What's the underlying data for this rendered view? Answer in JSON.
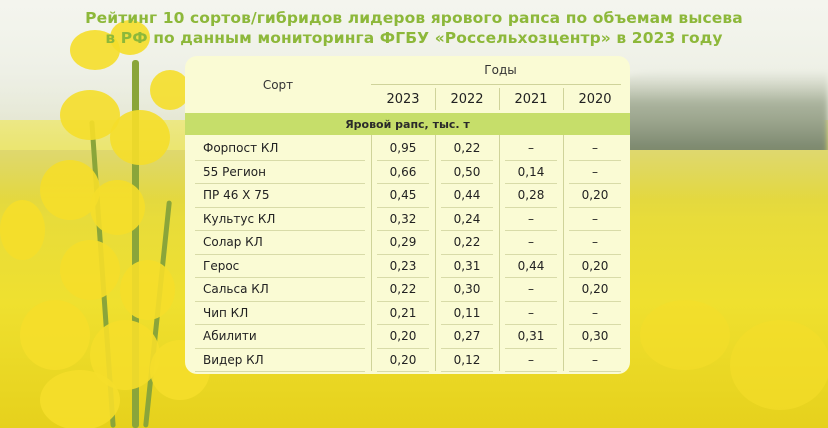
{
  "title": {
    "line1": "Рейтинг 10 сортов/гибридов лидеров ярового рапса по объемам высева",
    "line2": "в РФ по данным мониторинга ФГБУ «Россельхозцентр» в 2023 году"
  },
  "table": {
    "col_sort": "Сорт",
    "col_years": "Годы",
    "years": [
      "2023",
      "2022",
      "2021",
      "2020"
    ],
    "section": "Яровой рапс, тыс. т",
    "rows": [
      {
        "name": "Форпост КЛ",
        "v": [
          "0,95",
          "0,22",
          "–",
          "–"
        ]
      },
      {
        "name": "55 Регион",
        "v": [
          "0,66",
          "0,50",
          "0,14",
          "–"
        ]
      },
      {
        "name": "ПР 46 Х 75",
        "v": [
          "0,45",
          "0,44",
          "0,28",
          "0,20"
        ]
      },
      {
        "name": "Культус КЛ",
        "v": [
          "0,32",
          "0,24",
          "–",
          "–"
        ]
      },
      {
        "name": "Солар КЛ",
        "v": [
          "0,29",
          "0,22",
          "–",
          "–"
        ]
      },
      {
        "name": "Герос",
        "v": [
          "0,23",
          "0,31",
          "0,44",
          "0,20"
        ]
      },
      {
        "name": "Сальса КЛ",
        "v": [
          "0,22",
          "0,30",
          "–",
          "0,20"
        ]
      },
      {
        "name": "Чип КЛ",
        "v": [
          "0,21",
          "0,11",
          "–",
          "–"
        ]
      },
      {
        "name": "Абилити",
        "v": [
          "0,20",
          "0,27",
          "0,31",
          "0,30"
        ]
      },
      {
        "name": "Видер КЛ",
        "v": [
          "0,20",
          "0,12",
          "–",
          "–"
        ]
      }
    ]
  },
  "colors": {
    "title": "#8db83a",
    "section_band": "#c6de6a",
    "card": "#fafbd4"
  }
}
